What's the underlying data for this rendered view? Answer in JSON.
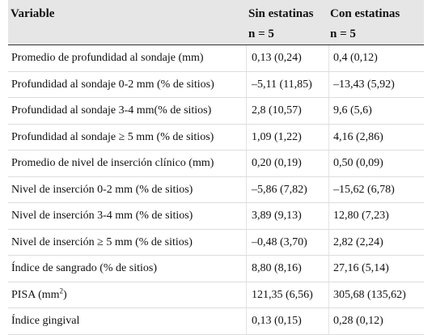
{
  "table": {
    "headers": {
      "variable": "Variable",
      "sin": "Sin estatinas",
      "sin_n": "n = 5",
      "con": "Con estatinas",
      "con_n": "n = 5"
    },
    "rows": [
      {
        "variable": "Promedio de profundidad al sondaje (mm)",
        "sin": "0,13 (0,24)",
        "con": "0,4 (0,12)"
      },
      {
        "variable": "Profundidad al sondaje 0-2 mm (% de sitios)",
        "sin": "–5,11 (11,85)",
        "con": "–13,43 (5,92)"
      },
      {
        "variable": "Profundidad al sondaje 3-4 mm(% de sitios)",
        "sin": "2,8 (10,57)",
        "con": "9,6 (5,6)"
      },
      {
        "variable": "Profundidad al sondaje ≥ 5 mm (% de sitios)",
        "sin": "1,09 (1,22)",
        "con": "4,16 (2,86)"
      },
      {
        "variable": "Promedio de nivel de inserción clínico (mm)",
        "sin": "0,20 (0,19)",
        "con": "0,50 (0,09)"
      },
      {
        "variable": "Nivel de inserción 0-2 mm (% de sitios)",
        "sin": "–5,86 (7,82)",
        "con": "–15,62 (6,78)"
      },
      {
        "variable": "Nivel de inserción 3-4 mm (% de sitios)",
        "sin": "3,89 (9,13)",
        "con": "12,80 (7,23)"
      },
      {
        "variable": "Nivel de inserción ≥ 5 mm (% de sitios)",
        "sin": "–0,48 (3,70)",
        "con": "2,82 (2,24)"
      },
      {
        "variable": "Índice de sangrado (% de sitios)",
        "sin": "8,80 (8,16)",
        "con": "27,16 (5,14)"
      },
      {
        "variable": "PISA (mm",
        "variable_sup": "2",
        "variable_after": ")",
        "sin": "121,35 (6,56)",
        "con": "305,68 (135,62)"
      },
      {
        "variable": "Índice gingival",
        "sin": "0,13 (0,15)",
        "con": "0,28 (0,12)"
      }
    ]
  }
}
